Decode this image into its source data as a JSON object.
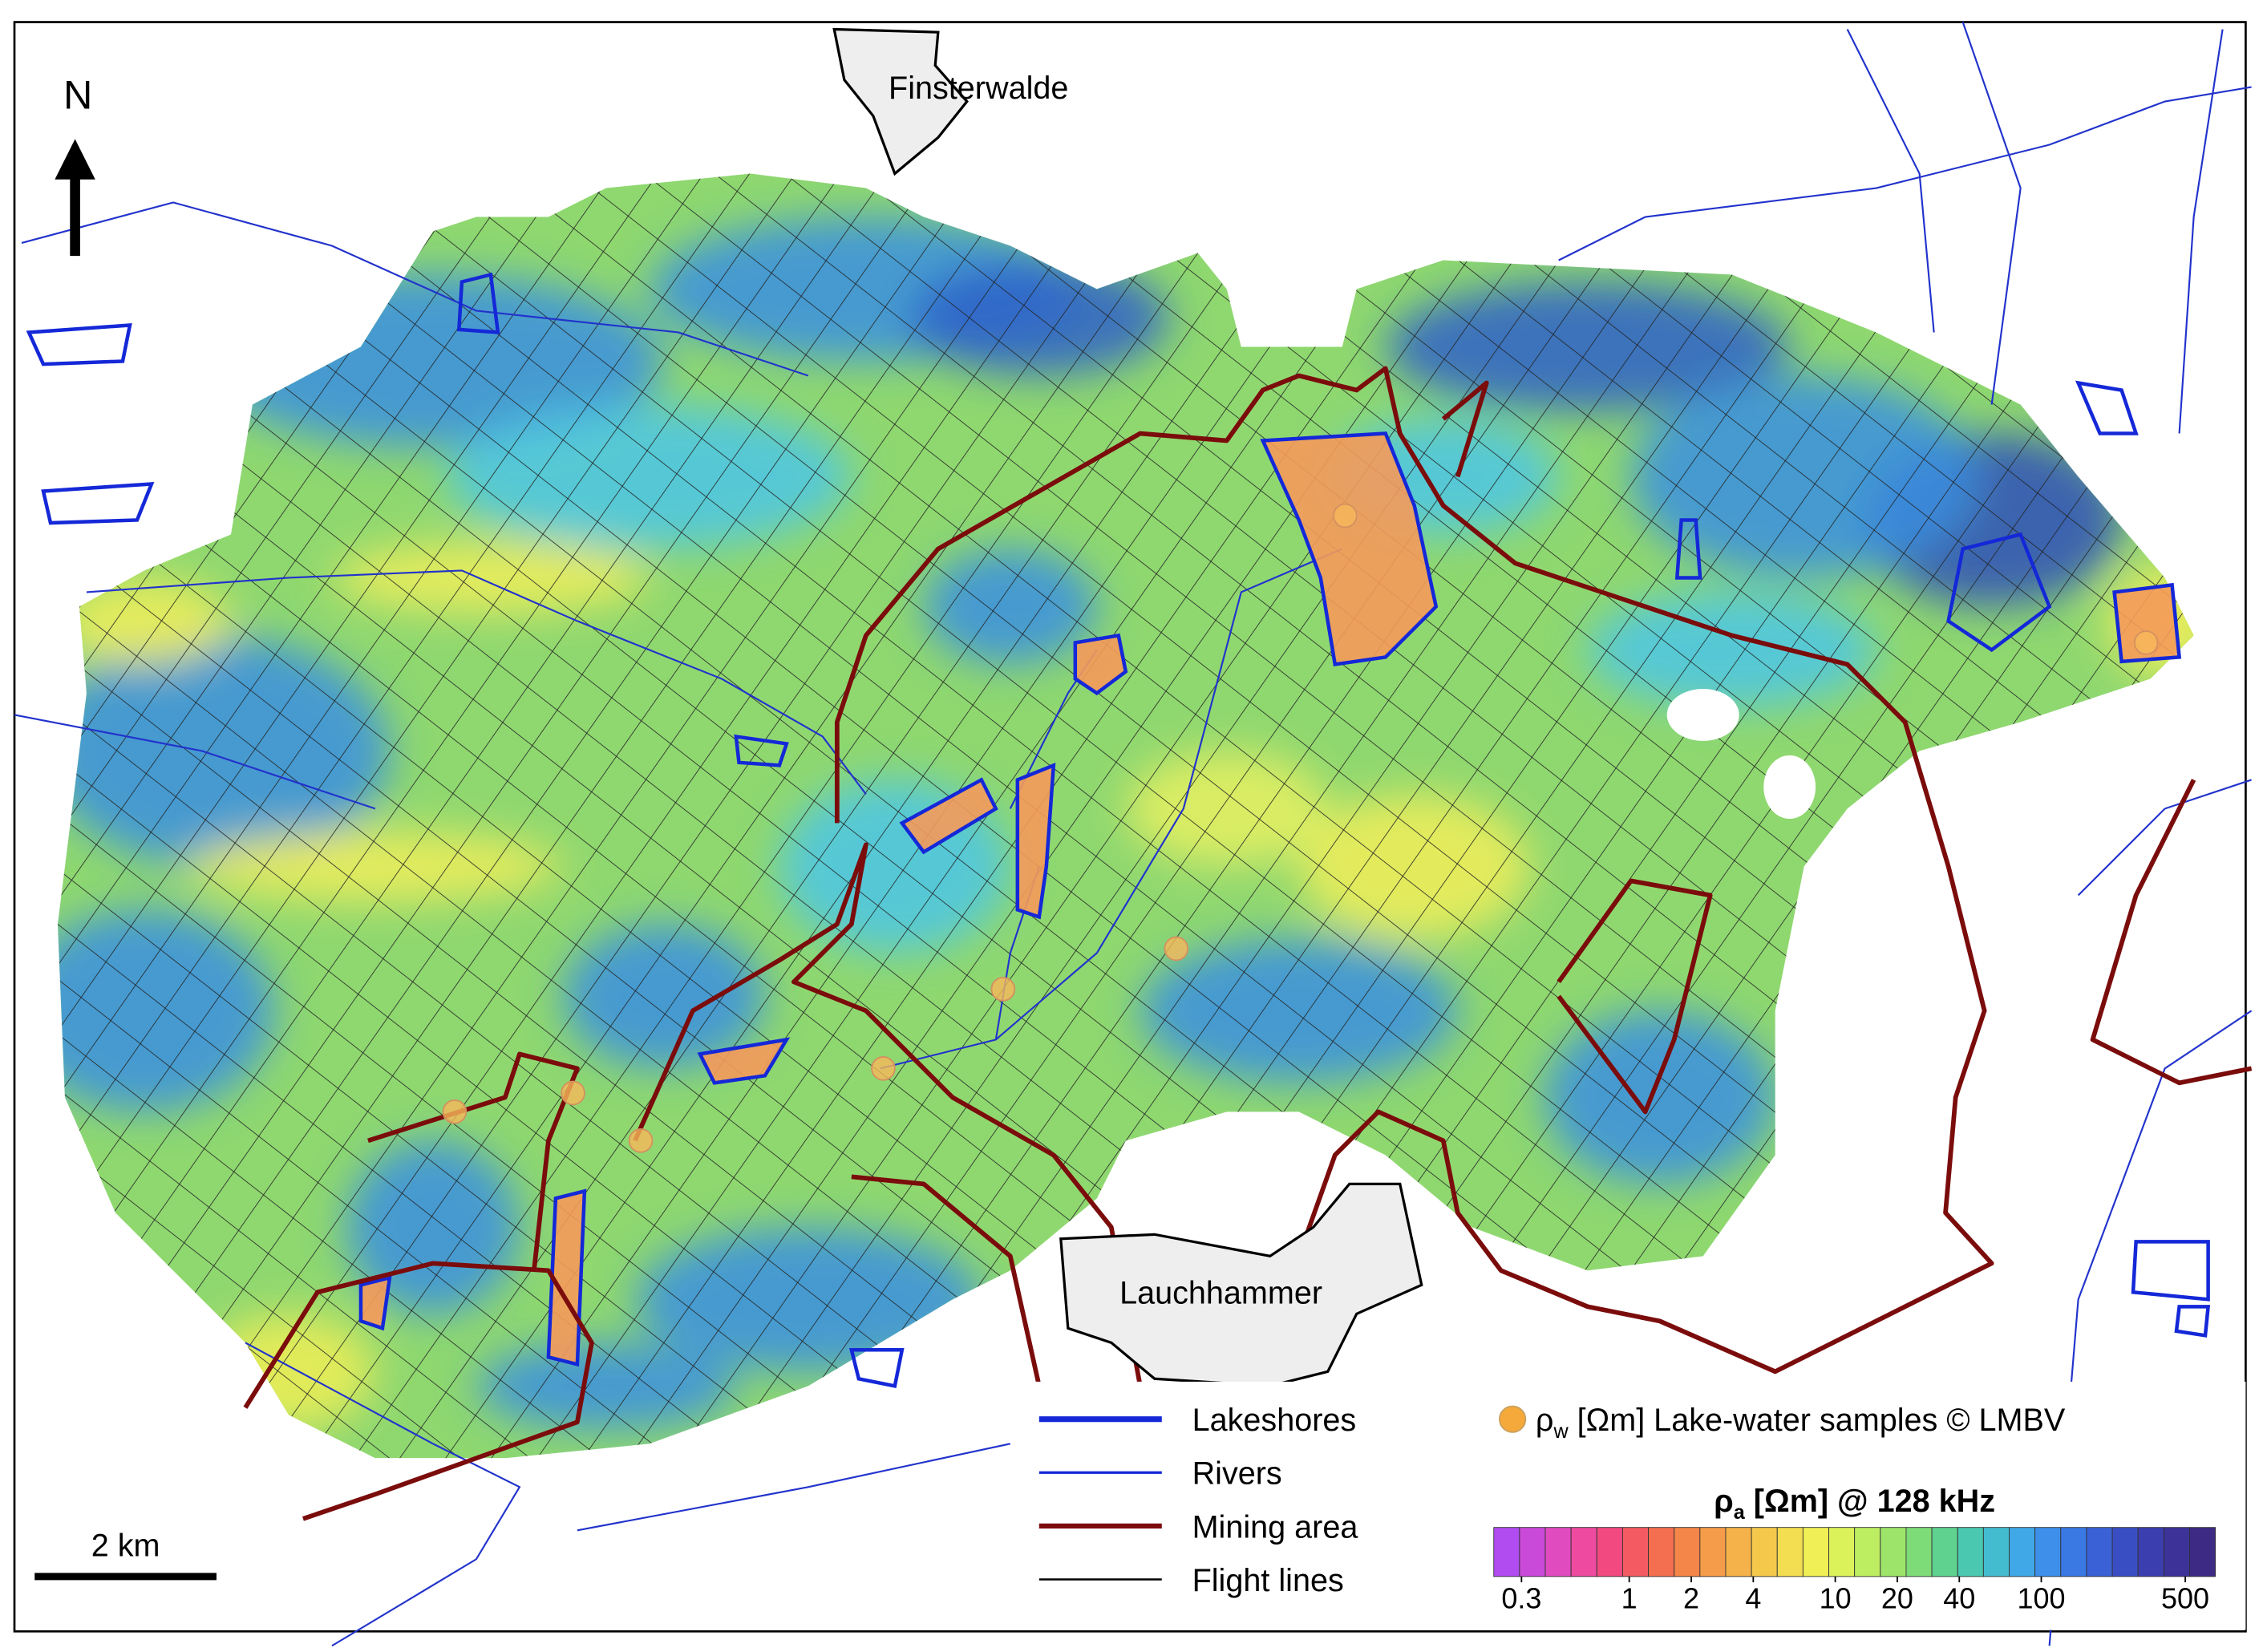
{
  "map": {
    "north": "N",
    "towns": [
      "Finsterwalde",
      "Lauchhammer"
    ],
    "scale_bar": "2 km",
    "legend": {
      "items": [
        "Lakeshores",
        "Rivers",
        "Mining area",
        "Flight lines"
      ],
      "samples": {
        "symbol": "ρ",
        "sub": "w",
        "rest": " [Ωm] Lake-water samples © LMBV"
      }
    },
    "colorbar": {
      "title": {
        "symbol": "ρ",
        "sub": "a",
        "rest": " [Ωm] @ 128 kHz"
      },
      "ticks": [
        0.3,
        1,
        2,
        4,
        10,
        20,
        40,
        100,
        500
      ],
      "lim": [
        0.22,
        700
      ],
      "log": true,
      "colors": [
        "#b04cf0",
        "#c94ad8",
        "#e04cc0",
        "#ee4aa0",
        "#f24a80",
        "#f45a62",
        "#f46f50",
        "#f5864a",
        "#f59c4a",
        "#f5b24a",
        "#f5c84c",
        "#f3dd50",
        "#f0ef55",
        "#dcf25a",
        "#bdee62",
        "#9de56a",
        "#7ddc78",
        "#5fd28f",
        "#4ac8b0",
        "#44bcd0",
        "#40a8e6",
        "#3d8fea",
        "#3a78e4",
        "#3a62d6",
        "#3a4ec4",
        "#3b3eae",
        "#3c3298",
        "#3d2a84"
      ]
    }
  }
}
